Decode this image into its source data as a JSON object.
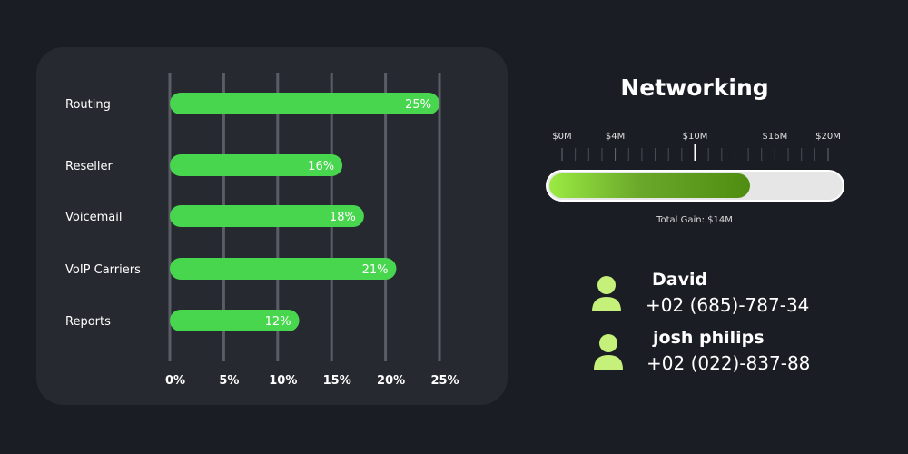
{
  "chart_data": {
    "type": "bar",
    "orientation": "horizontal",
    "categories": [
      "Routing",
      "Reseller",
      "Voicemail",
      "VoIP Carriers",
      "Reports"
    ],
    "values": [
      25,
      16,
      18,
      21,
      12
    ],
    "value_labels": [
      "25%",
      "16%",
      "18%",
      "21%",
      "12%"
    ],
    "x_ticks": [
      "0%",
      "5%",
      "10%",
      "15%",
      "20%",
      "25%"
    ],
    "xlim": [
      0,
      25
    ],
    "grid": true,
    "bar_color": "#48d64f"
  },
  "networking": {
    "title": "Networking",
    "scale_labels": [
      "$0M",
      "$4M",
      "$10M",
      "$16M",
      "$20M"
    ],
    "scale_values": [
      0,
      4,
      10,
      16,
      20
    ],
    "scale_max": 20,
    "marker_value": 10,
    "progress_fraction": 0.685,
    "caption": "Total Gain: $14M"
  },
  "contacts": [
    {
      "name": "David",
      "phone": "+02 (685)-787-34"
    },
    {
      "name": "josh philips",
      "phone": "+02 (022)-837-88"
    }
  ],
  "colors": {
    "background": "#1b1d24",
    "panel": "#262930",
    "bar": "#48d64f",
    "avatar": "#c5f07a",
    "gridline": "#5a5d66"
  }
}
